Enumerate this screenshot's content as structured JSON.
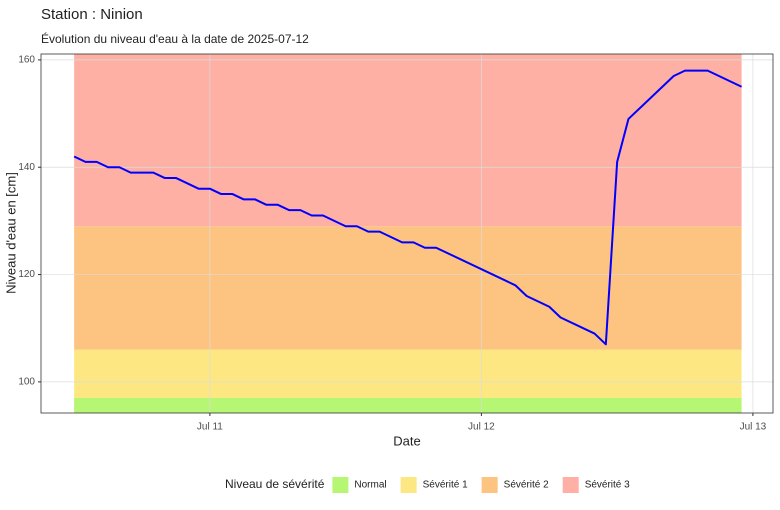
{
  "chart_data": {
    "type": "line",
    "title": "Station : Ninion",
    "subtitle": "Évolution du niveau d'eau à la date de 2025-07-12",
    "x_label": "Date",
    "y_label": "Niveau d'eau en [cm]",
    "x": [
      10.5,
      10.5417,
      10.5833,
      10.625,
      10.6667,
      10.7083,
      10.75,
      10.7917,
      10.8333,
      10.875,
      10.9167,
      10.9583,
      11,
      11.0417,
      11.0833,
      11.125,
      11.1667,
      11.2083,
      11.25,
      11.2917,
      11.3333,
      11.375,
      11.4167,
      11.4583,
      11.5,
      11.5417,
      11.5833,
      11.625,
      11.6667,
      11.7083,
      11.75,
      11.7917,
      11.8333,
      12.125,
      12.1667,
      12.25,
      12.2917,
      12.4167,
      12.4583,
      12.5,
      12.5417,
      12.7083,
      12.75,
      12.8333,
      12.9583
    ],
    "series": [
      {
        "name": "Niveau d'eau",
        "color": "#0000ff",
        "values": [
          142,
          141,
          141,
          140,
          140,
          139,
          139,
          139,
          138,
          138,
          137,
          136,
          136,
          135,
          135,
          134,
          134,
          133,
          133,
          132,
          132,
          131,
          131,
          130,
          129,
          129,
          128,
          128,
          127,
          126,
          126,
          125,
          125,
          118,
          116,
          114,
          112,
          109,
          107,
          141,
          149,
          157,
          158,
          158,
          155
        ]
      }
    ],
    "legend_title": "Niveau de sévérité",
    "bands": [
      {
        "name": "Normal",
        "color": "#b5f772",
        "from": 94.2,
        "to": 97
      },
      {
        "name": "Sévérité 1",
        "color": "#fde783",
        "from": 97,
        "to": 106
      },
      {
        "name": "Sévérité 2",
        "color": "#fdc381",
        "from": 106,
        "to": 129
      },
      {
        "name": "Sévérité 3",
        "color": "#fdb0a3",
        "from": 129,
        "to": 161.1
      }
    ],
    "bands_x": [
      10.5,
      12.9583
    ],
    "xlim": [
      10.378,
      13.074
    ],
    "ylim": [
      94.2,
      161.1
    ],
    "xticks": [
      {
        "value": 11,
        "label": "Jul 11"
      },
      {
        "value": 12,
        "label": "Jul 12"
      },
      {
        "value": 13,
        "label": "Jul 13"
      }
    ],
    "yticks": [
      100,
      120,
      140,
      160
    ],
    "grid": true,
    "legend_position": "bottom"
  }
}
